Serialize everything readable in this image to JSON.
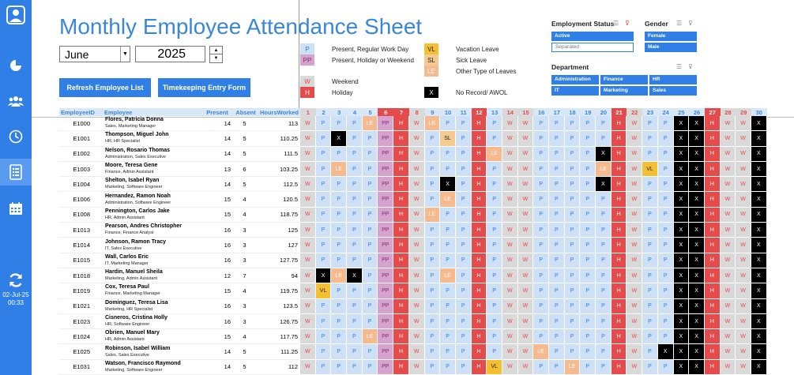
{
  "sidebar": {
    "date": "02-Jul-25",
    "time": "00:33",
    "icons": [
      "profile-icon",
      "pie-chart-icon",
      "users-icon",
      "clock-icon",
      "document-list-icon",
      "calendar-icon",
      "refresh-icon"
    ]
  },
  "header": {
    "title": "Monthly Employee Attendance Sheet",
    "month": "June",
    "year": "2025",
    "refresh_button": "Refresh Employee List",
    "timekeeping_button": "Timekeeping Entry Form"
  },
  "legend": [
    {
      "code": "P",
      "label": "Present, Regular Work Day"
    },
    {
      "code": "PP",
      "label": "Present, Holiday or Weekend"
    },
    {
      "code": "W",
      "label": "Weekend"
    },
    {
      "code": "H",
      "label": "Holiday"
    },
    {
      "code": "VL",
      "label": "Vacation Leave"
    },
    {
      "code": "SL",
      "label": "Sick Leave"
    },
    {
      "code": "LE",
      "label": "Other Type of Leaves"
    },
    {
      "code": "X",
      "label": "No Record/ AWOL"
    }
  ],
  "slicers": {
    "employment_status": {
      "title": "Employment Status",
      "items": [
        {
          "label": "Active",
          "selected": true
        },
        {
          "label": "Separated",
          "selected": false
        }
      ]
    },
    "gender": {
      "title": "Gender",
      "items": [
        {
          "label": "Female",
          "selected": true
        },
        {
          "label": "Male",
          "selected": true
        }
      ]
    },
    "department": {
      "title": "Department",
      "items": [
        {
          "label": "Administration",
          "selected": true
        },
        {
          "label": "Finance",
          "selected": true
        },
        {
          "label": "HR",
          "selected": true
        },
        {
          "label": "IT",
          "selected": true
        },
        {
          "label": "Marketing",
          "selected": true
        },
        {
          "label": "Sales",
          "selected": true
        }
      ]
    }
  },
  "columns": {
    "id": "EmployeeID",
    "employee": "Employee",
    "present": "Present",
    "absent": "Absent",
    "hours": "HoursWorked"
  },
  "days": [
    "1",
    "2",
    "3",
    "4",
    "5",
    "6",
    "7",
    "8",
    "9",
    "10",
    "11",
    "12",
    "13",
    "14",
    "15",
    "16",
    "17",
    "18",
    "19",
    "20",
    "21",
    "22",
    "23",
    "24",
    "25",
    "26",
    "27",
    "28",
    "29",
    "30"
  ],
  "day_types": [
    "W",
    "",
    "",
    "",
    "",
    "H",
    "H",
    "W",
    "",
    "",
    "",
    "H",
    "",
    "W",
    "W",
    "",
    "",
    "",
    "",
    "",
    "H",
    "W",
    "",
    "",
    "",
    "",
    "H",
    "W",
    "W",
    ""
  ],
  "employees": [
    {
      "id": "E1000",
      "name": "Flores, Patricia Donna",
      "role": "Sales, Marketing Manager",
      "present": "14",
      "absent": "5",
      "hours": "113",
      "att": [
        "W",
        "P",
        "P",
        "P",
        "LE",
        "PP",
        "H",
        "W",
        "LE",
        "P",
        "P",
        "H",
        "P",
        "W",
        "W",
        "P",
        "P",
        "P",
        "P",
        "P",
        "H",
        "W",
        "P",
        "P",
        "X",
        "X",
        "H",
        "W",
        "W",
        "X"
      ]
    },
    {
      "id": "E1001",
      "name": "Thompson, Miguel John",
      "role": "HR, HR Specialist",
      "present": "14",
      "absent": "5",
      "hours": "110.25",
      "att": [
        "W",
        "P",
        "X",
        "P",
        "P",
        "PP",
        "H",
        "W",
        "P",
        "SL",
        "P",
        "H",
        "P",
        "W",
        "W",
        "P",
        "P",
        "P",
        "P",
        "P",
        "H",
        "W",
        "P",
        "P",
        "X",
        "X",
        "H",
        "W",
        "W",
        "X"
      ]
    },
    {
      "id": "E1002",
      "name": "Nelson, Rosario Thomas",
      "role": "Administration, Sales Executive",
      "present": "14",
      "absent": "5",
      "hours": "111.5",
      "att": [
        "W",
        "P",
        "P",
        "P",
        "P",
        "PP",
        "H",
        "W",
        "P",
        "P",
        "P",
        "H",
        "LE",
        "W",
        "W",
        "P",
        "P",
        "P",
        "P",
        "X",
        "H",
        "W",
        "P",
        "P",
        "X",
        "X",
        "H",
        "W",
        "W",
        "X"
      ]
    },
    {
      "id": "E1003",
      "name": "Moore, Teresa Gene",
      "role": "Finance, Admin Assistant",
      "present": "13",
      "absent": "6",
      "hours": "103.25",
      "att": [
        "W",
        "P",
        "LE",
        "P",
        "P",
        "PP",
        "H",
        "W",
        "P",
        "P",
        "P",
        "H",
        "P",
        "W",
        "W",
        "P",
        "P",
        "P",
        "P",
        "LE",
        "H",
        "W",
        "VL",
        "P",
        "X",
        "X",
        "H",
        "W",
        "W",
        "X"
      ]
    },
    {
      "id": "E1004",
      "name": "Shelton, Isabel Ryan",
      "role": "Marketing, Software Engineer",
      "present": "14",
      "absent": "5",
      "hours": "112.5",
      "att": [
        "W",
        "P",
        "P",
        "P",
        "P",
        "PP",
        "H",
        "W",
        "P",
        "X",
        "P",
        "H",
        "P",
        "W",
        "W",
        "P",
        "P",
        "P",
        "P",
        "X",
        "H",
        "W",
        "P",
        "P",
        "X",
        "X",
        "H",
        "W",
        "W",
        "X"
      ]
    },
    {
      "id": "E1006",
      "name": "Hernandez, Ramon Noah",
      "role": "Administration, Software Engineer",
      "present": "15",
      "absent": "4",
      "hours": "120.5",
      "att": [
        "W",
        "P",
        "P",
        "P",
        "P",
        "PP",
        "H",
        "W",
        "P",
        "LE",
        "P",
        "H",
        "P",
        "W",
        "W",
        "P",
        "P",
        "P",
        "P",
        "P",
        "H",
        "W",
        "P",
        "P",
        "X",
        "X",
        "H",
        "W",
        "W",
        "X"
      ]
    },
    {
      "id": "E1008",
      "name": "Pennington, Carlos Jake",
      "role": "HR, Admin Assistant",
      "present": "15",
      "absent": "4",
      "hours": "118.75",
      "att": [
        "W",
        "P",
        "P",
        "P",
        "P",
        "PP",
        "H",
        "W",
        "LE",
        "P",
        "P",
        "H",
        "P",
        "W",
        "W",
        "P",
        "P",
        "P",
        "P",
        "P",
        "H",
        "W",
        "P",
        "P",
        "X",
        "X",
        "H",
        "W",
        "W",
        "X"
      ]
    },
    {
      "id": "E1013",
      "name": "Pearson, Andres Christopher",
      "role": "Finance, Finance Analyst",
      "present": "16",
      "absent": "3",
      "hours": "125",
      "att": [
        "W",
        "P",
        "P",
        "P",
        "P",
        "PP",
        "H",
        "W",
        "P",
        "P",
        "P",
        "H",
        "P",
        "W",
        "W",
        "P",
        "P",
        "P",
        "P",
        "P",
        "H",
        "W",
        "P",
        "P",
        "X",
        "X",
        "H",
        "W",
        "W",
        "X"
      ]
    },
    {
      "id": "E1014",
      "name": "Johnson, Ramon Tracy",
      "role": "IT, Sales Executive",
      "present": "16",
      "absent": "3",
      "hours": "127",
      "att": [
        "W",
        "P",
        "P",
        "P",
        "P",
        "PP",
        "H",
        "W",
        "P",
        "P",
        "P",
        "H",
        "P",
        "W",
        "W",
        "P",
        "P",
        "P",
        "P",
        "P",
        "H",
        "W",
        "P",
        "P",
        "X",
        "X",
        "H",
        "W",
        "W",
        "X"
      ]
    },
    {
      "id": "E1015",
      "name": "Wall, Carlos Eric",
      "role": "IT, Marketing Manager",
      "present": "16",
      "absent": "3",
      "hours": "127.75",
      "att": [
        "W",
        "P",
        "P",
        "P",
        "P",
        "PP",
        "H",
        "W",
        "P",
        "P",
        "P",
        "H",
        "P",
        "W",
        "W",
        "P",
        "P",
        "P",
        "P",
        "P",
        "H",
        "W",
        "P",
        "P",
        "X",
        "X",
        "H",
        "W",
        "W",
        "X"
      ]
    },
    {
      "id": "E1018",
      "name": "Hardin, Manuel Sheila",
      "role": "Marketing, Admin Assistant",
      "present": "12",
      "absent": "7",
      "hours": "94",
      "att": [
        "W",
        "X",
        "LE",
        "X",
        "P",
        "PP",
        "H",
        "W",
        "P",
        "LE",
        "P",
        "H",
        "P",
        "W",
        "W",
        "P",
        "P",
        "P",
        "P",
        "P",
        "H",
        "W",
        "P",
        "P",
        "X",
        "X",
        "H",
        "W",
        "W",
        "X"
      ]
    },
    {
      "id": "E1019",
      "name": "Cox, Teresa Paul",
      "role": "Finance, Marketing Manager",
      "present": "15",
      "absent": "4",
      "hours": "119.75",
      "att": [
        "W",
        "VL",
        "P",
        "P",
        "P",
        "PP",
        "H",
        "W",
        "P",
        "P",
        "P",
        "H",
        "P",
        "W",
        "W",
        "P",
        "P",
        "P",
        "P",
        "P",
        "H",
        "W",
        "P",
        "P",
        "X",
        "X",
        "H",
        "W",
        "W",
        "X"
      ]
    },
    {
      "id": "E1021",
      "name": "Dominguez, Teresa Lisa",
      "role": "Marketing, HR Specialist",
      "present": "16",
      "absent": "3",
      "hours": "123.5",
      "att": [
        "W",
        "P",
        "P",
        "P",
        "P",
        "PP",
        "H",
        "W",
        "P",
        "P",
        "P",
        "H",
        "P",
        "W",
        "W",
        "P",
        "P",
        "P",
        "P",
        "P",
        "H",
        "W",
        "P",
        "P",
        "X",
        "X",
        "H",
        "W",
        "W",
        "X"
      ]
    },
    {
      "id": "E1023",
      "name": "Cisneros, Cristina Holly",
      "role": "HR, Software Engineer",
      "present": "16",
      "absent": "3",
      "hours": "126.75",
      "att": [
        "W",
        "P",
        "P",
        "P",
        "P",
        "PP",
        "H",
        "W",
        "P",
        "P",
        "P",
        "H",
        "P",
        "W",
        "W",
        "P",
        "P",
        "P",
        "P",
        "P",
        "H",
        "W",
        "P",
        "P",
        "X",
        "X",
        "H",
        "W",
        "W",
        "X"
      ]
    },
    {
      "id": "E1024",
      "name": "Obrien, Manuel Mary",
      "role": "HR, Admin Assistant",
      "present": "15",
      "absent": "4",
      "hours": "117.75",
      "att": [
        "W",
        "P",
        "P",
        "P",
        "LE",
        "PP",
        "H",
        "W",
        "P",
        "P",
        "P",
        "H",
        "P",
        "W",
        "W",
        "P",
        "P",
        "P",
        "P",
        "P",
        "H",
        "W",
        "P",
        "P",
        "X",
        "X",
        "H",
        "W",
        "W",
        "X"
      ]
    },
    {
      "id": "E1025",
      "name": "Robinson, Isabel William",
      "role": "Sales, Sales Executive",
      "present": "14",
      "absent": "5",
      "hours": "111.25",
      "att": [
        "W",
        "P",
        "P",
        "P",
        "P",
        "PP",
        "H",
        "W",
        "P",
        "P",
        "P",
        "H",
        "P",
        "W",
        "W",
        "LE",
        "P",
        "P",
        "P",
        "P",
        "H",
        "W",
        "P",
        "X",
        "X",
        "X",
        "H",
        "W",
        "W",
        "X"
      ]
    },
    {
      "id": "E1031",
      "name": "Watson, Francisco Raymond",
      "role": "Marketing, Software Engineer",
      "present": "14",
      "absent": "5",
      "hours": "112",
      "att": [
        "W",
        "P",
        "P",
        "P",
        "P",
        "PP",
        "H",
        "W",
        "P",
        "P",
        "P",
        "H",
        "VL",
        "W",
        "W",
        "P",
        "P",
        "LE",
        "P",
        "P",
        "H",
        "W",
        "P",
        "P",
        "X",
        "X",
        "H",
        "W",
        "W",
        "X"
      ]
    }
  ]
}
